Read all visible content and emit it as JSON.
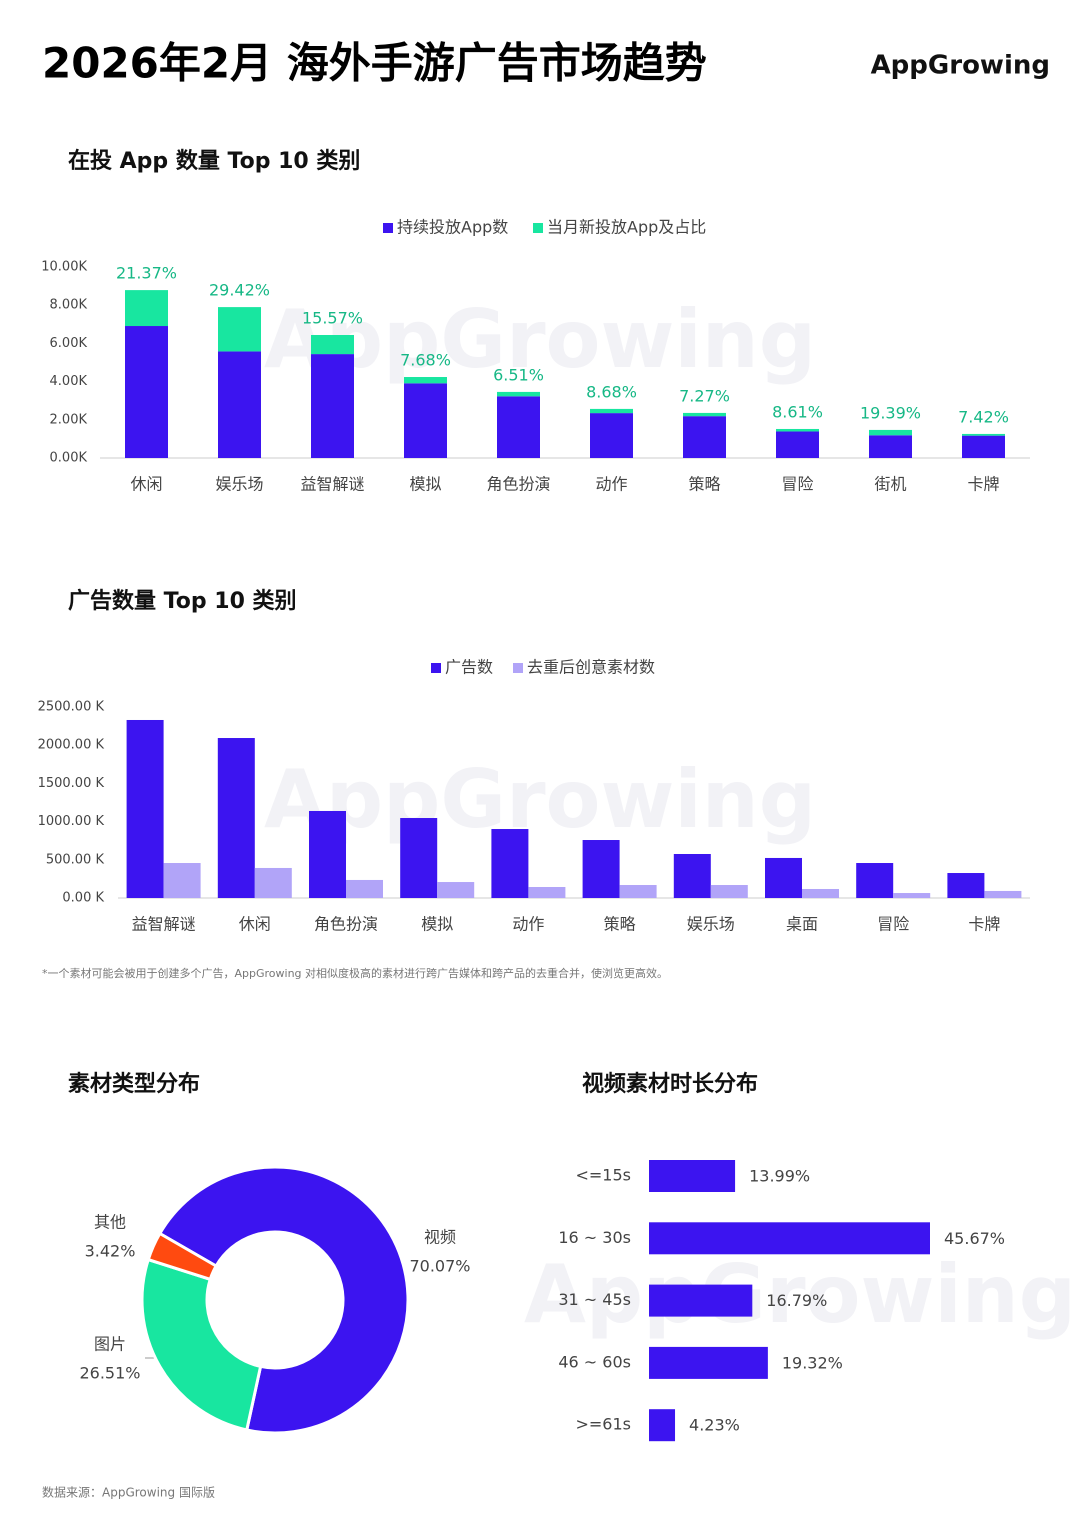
{
  "header": {
    "title": "2026年2月 海外手游广告市场趋势",
    "logo": "AppGrowing",
    "watermark": "AppGrowing"
  },
  "chart_data": [
    {
      "type": "stacked_bar",
      "title": "在投 App 数量 Top 10 类别",
      "categories": [
        "休闲",
        "娱乐场",
        "益智解谜",
        "模拟",
        "角色扮演",
        "动作",
        "策略",
        "冒险",
        "街机",
        "卡牌"
      ],
      "series": [
        {
          "name": "持续投放App数",
          "color": "#3c14f0",
          "values": [
            6.91,
            5.58,
            5.44,
            3.91,
            3.23,
            2.35,
            2.19,
            1.39,
            1.19,
            1.17
          ]
        },
        {
          "name": "当月新投放App及占比",
          "color": "#18e6a0",
          "values": [
            1.88,
            2.32,
            1.0,
            0.33,
            0.23,
            0.22,
            0.17,
            0.13,
            0.28,
            0.09
          ]
        }
      ],
      "share_labels": [
        "21.37%",
        "29.42%",
        "15.57%",
        "7.68%",
        "6.51%",
        "8.68%",
        "7.27%",
        "8.61%",
        "19.39%",
        "7.42%"
      ],
      "ylim": [
        0,
        10
      ],
      "yticks": [
        {
          "value": 0,
          "label": "0.00K"
        },
        {
          "value": 2,
          "label": "2.00K"
        },
        {
          "value": 4,
          "label": "4.00K"
        },
        {
          "value": 6,
          "label": "6.00K"
        },
        {
          "value": 8,
          "label": "8.00K"
        },
        {
          "value": 10,
          "label": "10.00K"
        }
      ]
    },
    {
      "type": "grouped_bar",
      "title": "广告数量 Top 10 类别",
      "categories": [
        "益智解谜",
        "休闲",
        "角色扮演",
        "模拟",
        "动作",
        "策略",
        "娱乐场",
        "桌面",
        "冒险",
        "卡牌"
      ],
      "series": [
        {
          "name": "广告数",
          "color": "#3c14f0",
          "values": [
            2330,
            2094,
            1139,
            1047,
            903,
            759,
            576,
            524,
            458,
            327
          ]
        },
        {
          "name": "去重后创意素材数",
          "color": "#b1a4f8",
          "values": [
            458,
            393,
            236,
            209,
            144,
            170,
            170,
            118,
            65,
            92
          ]
        }
      ],
      "ylim": [
        0,
        2500
      ],
      "yticks": [
        {
          "value": 0,
          "label": "0.00 K"
        },
        {
          "value": 500,
          "label": "500.00 K"
        },
        {
          "value": 1000,
          "label": "1000.00 K"
        },
        {
          "value": 1500,
          "label": "1500.00 K"
        },
        {
          "value": 2000,
          "label": "2000.00 K"
        },
        {
          "value": 2500,
          "label": "2500.00 K"
        }
      ],
      "footnote": "*一个素材可能会被用于创建多个广告，AppGrowing 对相似度极高的素材进行跨广告媒体和跨产品的去重合并，使浏览更高效。"
    },
    {
      "type": "donut",
      "title": "素材类型分布",
      "categories": [
        "视频",
        "图片",
        "其他"
      ],
      "values": [
        70.07,
        26.51,
        3.42
      ],
      "value_labels": [
        "70.07%",
        "26.51%",
        "3.42%"
      ],
      "colors": [
        "#3c14f0",
        "#18e6a0",
        "#ff4a10"
      ]
    },
    {
      "type": "hbar",
      "title": "视频素材时长分布",
      "categories": [
        "<=15s",
        "16 ~ 30s",
        "31 ~ 45s",
        "46 ~ 60s",
        ">=61s"
      ],
      "values": [
        13.99,
        45.67,
        16.79,
        19.32,
        4.23
      ],
      "value_labels": [
        "13.99%",
        "45.67%",
        "16.79%",
        "19.32%",
        "4.23%"
      ],
      "color": "#3c14f0"
    }
  ],
  "source": "数据来源：AppGrowing 国际版"
}
